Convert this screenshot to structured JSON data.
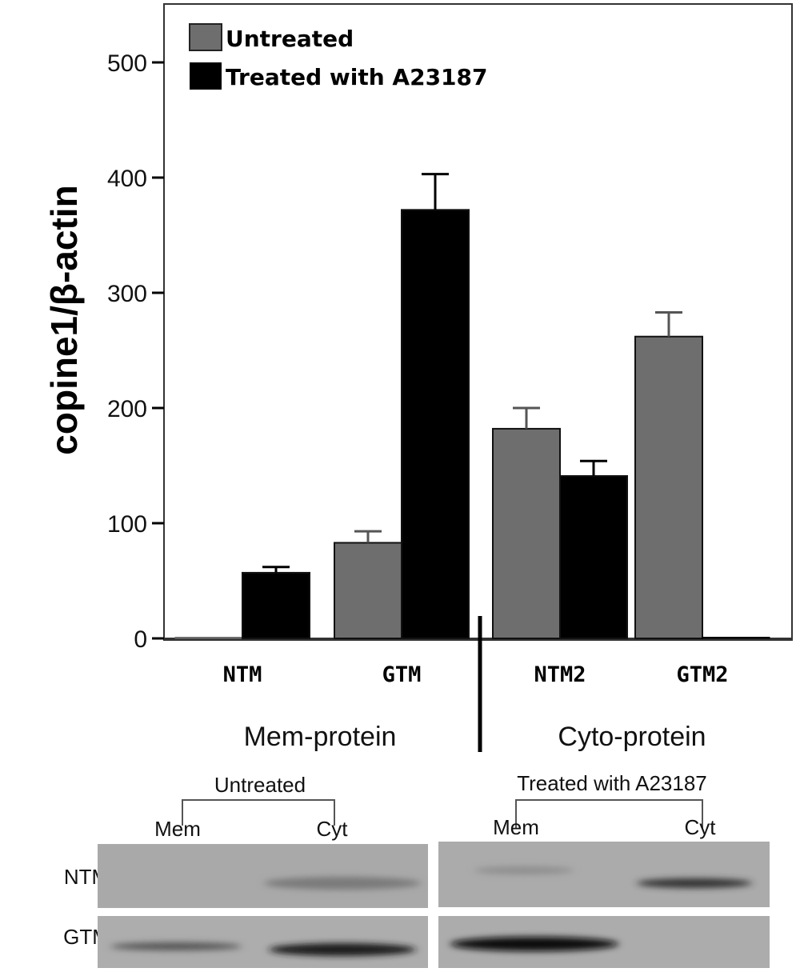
{
  "chart_data": {
    "type": "bar",
    "title": "",
    "xlabel": "",
    "ylabel": "copine1/β-actin",
    "ylim": [
      0,
      550
    ],
    "yticks": [
      0,
      100,
      200,
      300,
      400,
      500
    ],
    "categories": [
      "NTM",
      "GTM",
      "NTM2",
      "GTM2"
    ],
    "groups": [
      {
        "label": "Mem-protein",
        "categories": [
          "NTM",
          "GTM"
        ]
      },
      {
        "label": "Cyto-protein",
        "categories": [
          "NTM2",
          "GTM2"
        ]
      }
    ],
    "series": [
      {
        "name": "Untreated",
        "color": "#6e6e6e",
        "values": [
          0,
          83,
          182,
          262
        ],
        "errors": [
          0,
          10,
          18,
          21
        ]
      },
      {
        "name": "Treated with A23187",
        "color": "#000000",
        "values": [
          57,
          372,
          141,
          1
        ],
        "errors": [
          5,
          31,
          13,
          0
        ]
      }
    ],
    "legend_position": "top-left",
    "grid": false
  },
  "blot": {
    "conditions": [
      "Untreated",
      "Treated with A23187"
    ],
    "lanes": [
      "Mem",
      "Cyt"
    ],
    "rows": [
      "NTM",
      "GTM"
    ]
  }
}
